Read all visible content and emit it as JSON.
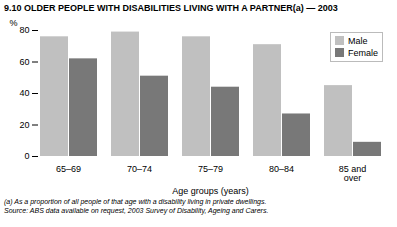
{
  "chart_data": {
    "type": "bar",
    "title": "9.10  OLDER PEOPLE WITH DISABILITIES LIVING WITH A PARTNER(a) — 2003",
    "categories": [
      "65–69",
      "70–74",
      "75–79",
      "80–84",
      "85 and\nover"
    ],
    "series": [
      {
        "name": "Male",
        "color": "#c0c0c0",
        "values": [
          76,
          79,
          76,
          71,
          45
        ]
      },
      {
        "name": "Female",
        "color": "#787878",
        "values": [
          62,
          51,
          44,
          27,
          9
        ]
      }
    ],
    "xlabel": "Age groups (years)",
    "ylabel": "%",
    "ylim": [
      0,
      80
    ],
    "yticks": [
      0,
      20,
      40,
      60,
      80
    ],
    "grid": false,
    "legend": "upper right",
    "annotations": [
      "(a) As a proportion of all people of that age with a disability living in private dwellings.",
      "Source: ABS data available on request, 2003 Survey of Disability, Ageing and Carers."
    ]
  }
}
